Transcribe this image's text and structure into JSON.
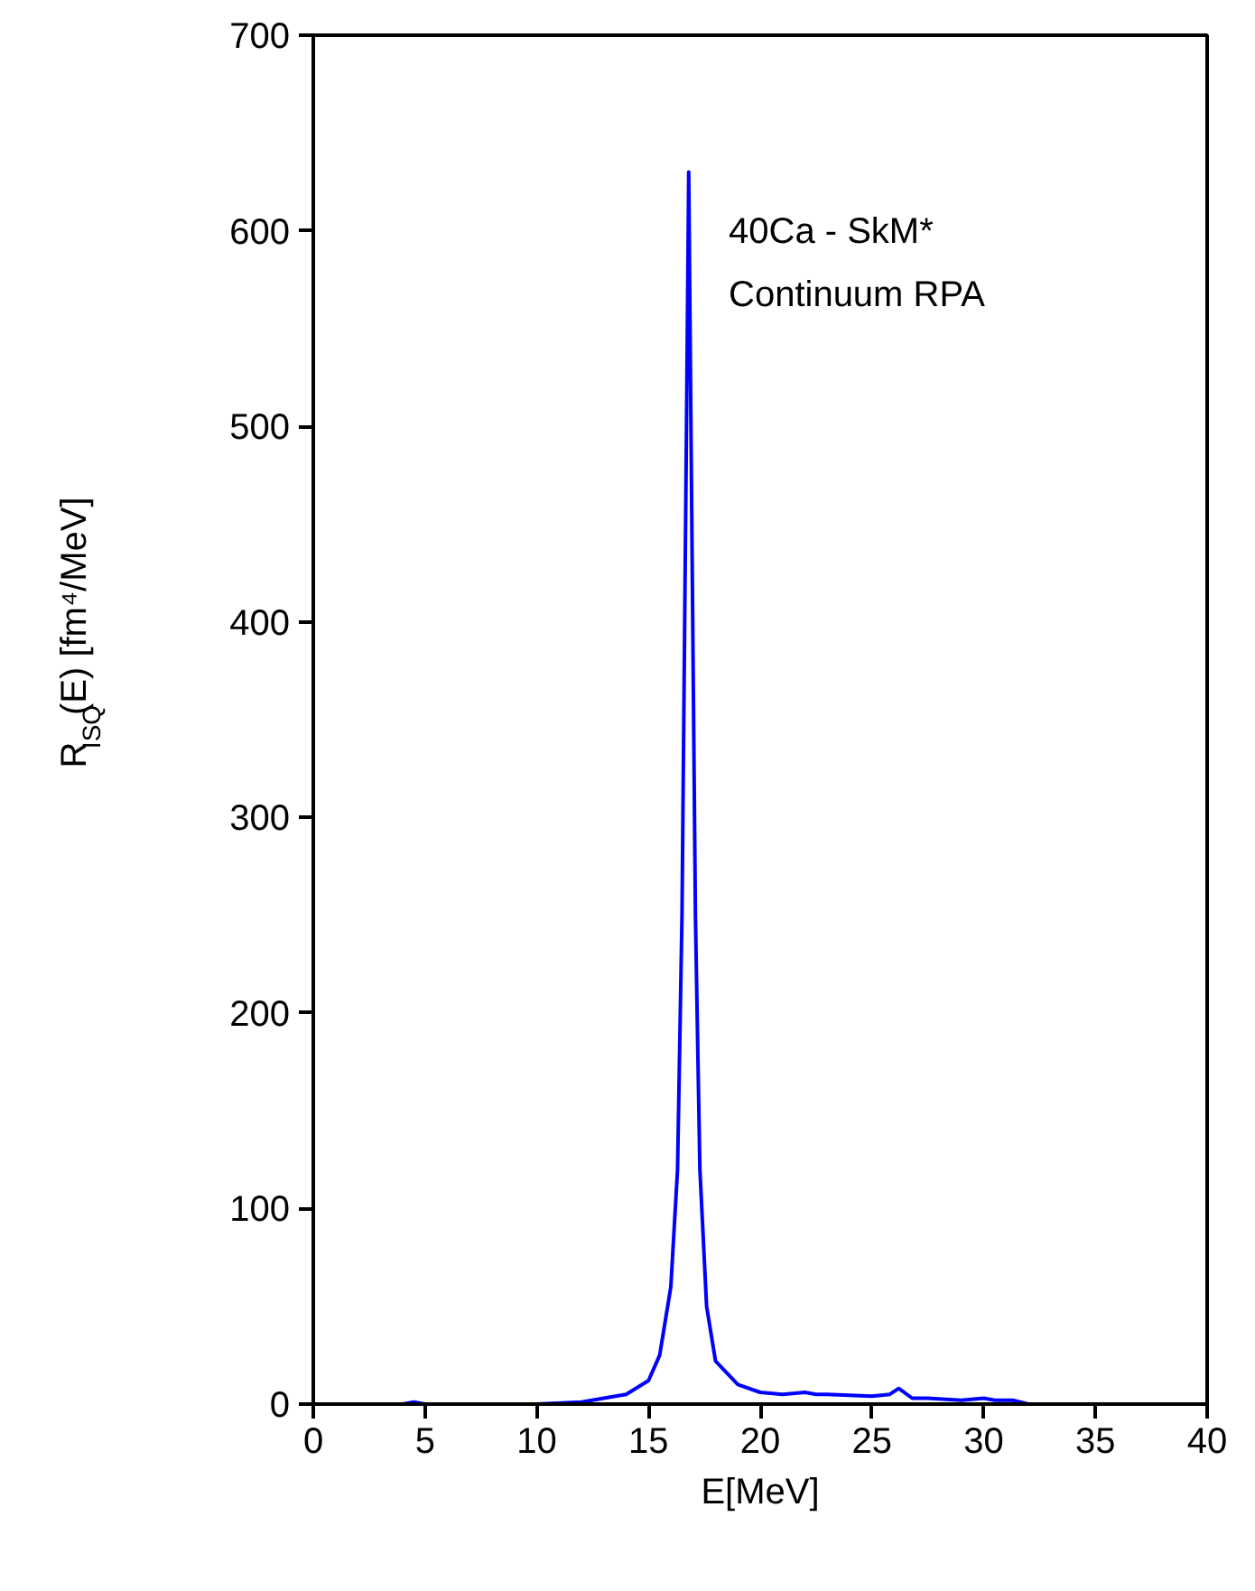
{
  "chart_data": {
    "type": "line",
    "xlabel": "E[MeV]",
    "ylabel": "R$_{ISQ}$(E) [fm⁴/MeV]",
    "annotations": [
      "40Ca - SkM*",
      "Continuum RPA"
    ],
    "x": [
      0,
      4,
      4.5,
      5,
      10,
      12,
      14,
      15,
      15.5,
      16,
      16.3,
      16.5,
      16.7,
      16.8,
      16.9,
      17.1,
      17.3,
      17.6,
      18,
      19,
      20,
      21,
      22,
      22.5,
      23,
      25,
      25.8,
      26.2,
      26.8,
      27.5,
      29,
      30,
      30.5,
      31.3,
      32,
      35,
      40
    ],
    "series": [
      {
        "color": "#0000ff",
        "values": [
          0,
          0,
          1,
          0,
          0,
          1,
          5,
          12,
          25,
          60,
          120,
          250,
          500,
          630,
          500,
          250,
          120,
          50,
          22,
          10,
          6,
          5,
          6,
          5,
          5,
          4,
          5,
          8,
          3,
          3,
          2,
          3,
          2,
          2,
          0,
          0,
          0
        ]
      }
    ],
    "xlim": [
      0,
      40
    ],
    "ylim": [
      0,
      700
    ],
    "xticks": [
      0,
      5,
      10,
      15,
      20,
      25,
      30,
      35,
      40
    ],
    "yticks": [
      0,
      100,
      200,
      300,
      400,
      500,
      600,
      700
    ],
    "grid": false,
    "marker": "none",
    "line_style": "solid"
  }
}
